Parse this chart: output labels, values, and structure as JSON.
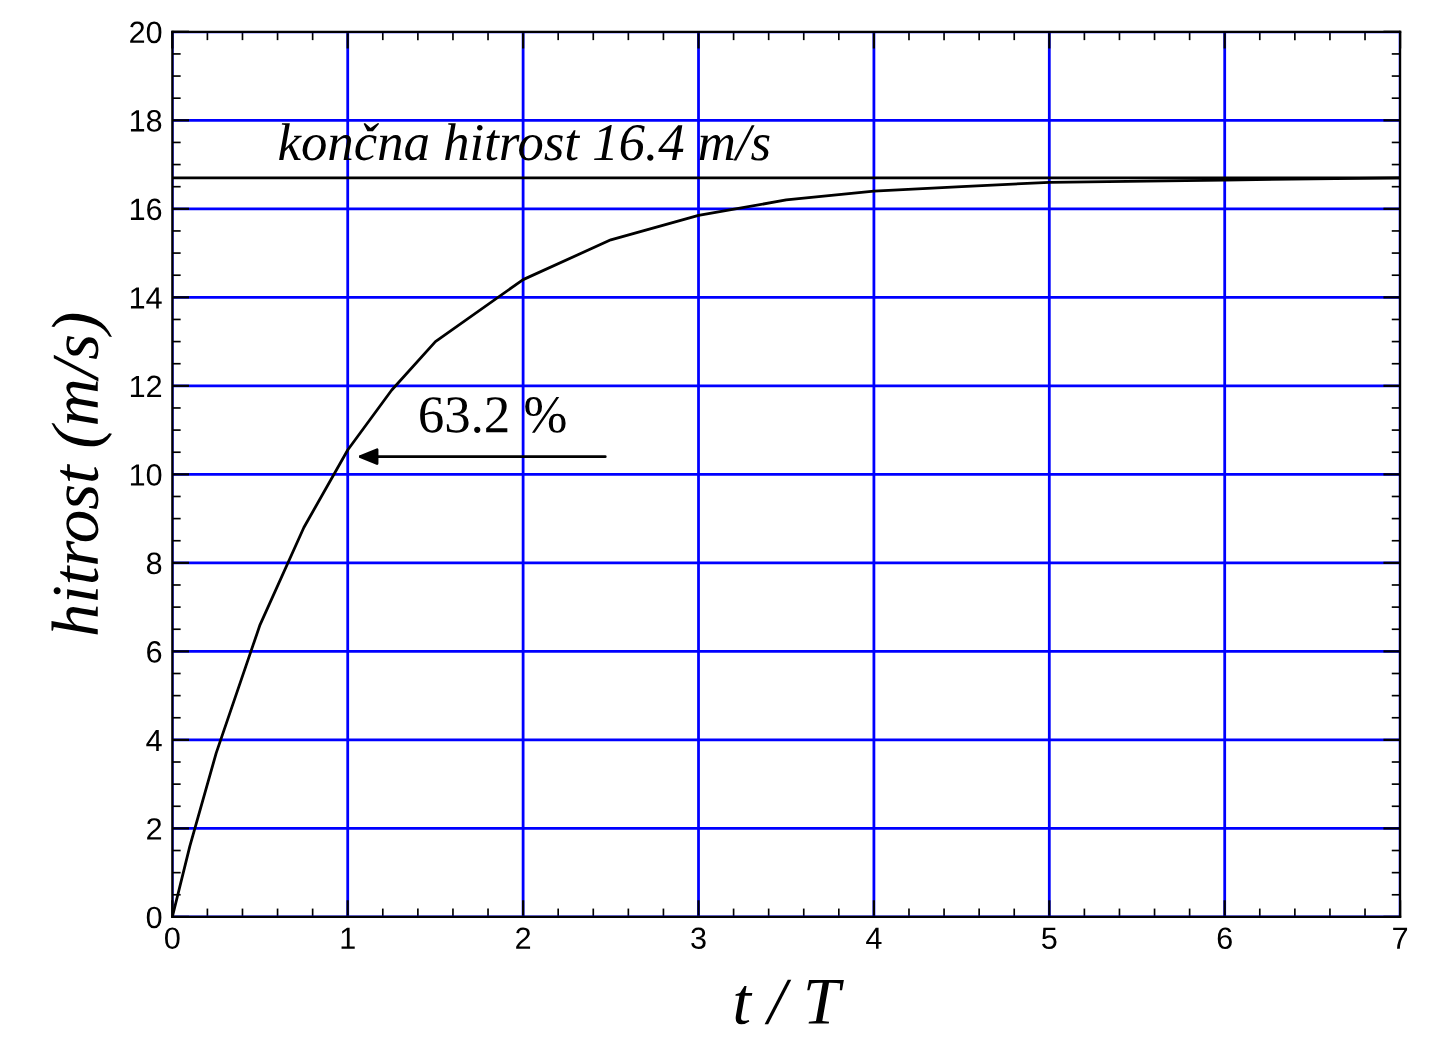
{
  "chart_data": {
    "type": "line",
    "xlabel": "t / T",
    "ylabel": "hitrost (m/s)",
    "x": [
      0,
      0.1,
      0.25,
      0.5,
      0.75,
      1,
      1.25,
      1.5,
      2,
      2.5,
      3,
      3.5,
      4,
      4.5,
      5,
      6,
      7
    ],
    "series": [
      {
        "color": "#000000",
        "values": [
          0,
          1.6,
          3.7,
          6.6,
          8.8,
          10.55,
          11.9,
          13.0,
          14.4,
          15.3,
          15.85,
          16.2,
          16.4,
          16.5,
          16.6,
          16.65,
          16.7
        ]
      }
    ],
    "xlim": [
      0,
      7
    ],
    "xticks": [
      0,
      1,
      2,
      3,
      4,
      5,
      6,
      7
    ],
    "ylim": [
      0,
      20
    ],
    "yticks": [
      0,
      2,
      4,
      6,
      8,
      10,
      12,
      14,
      16,
      18,
      20
    ],
    "grid": true,
    "marker": "none",
    "line_style": "solid",
    "ref_lines": [
      {
        "axis": "y",
        "value": 16.7,
        "label": "končna hitrost 16.4 m/s",
        "color": "#000000"
      }
    ],
    "annotations": [
      {
        "text": "63.2 %",
        "x": 1,
        "y": 10.55
      }
    ]
  }
}
